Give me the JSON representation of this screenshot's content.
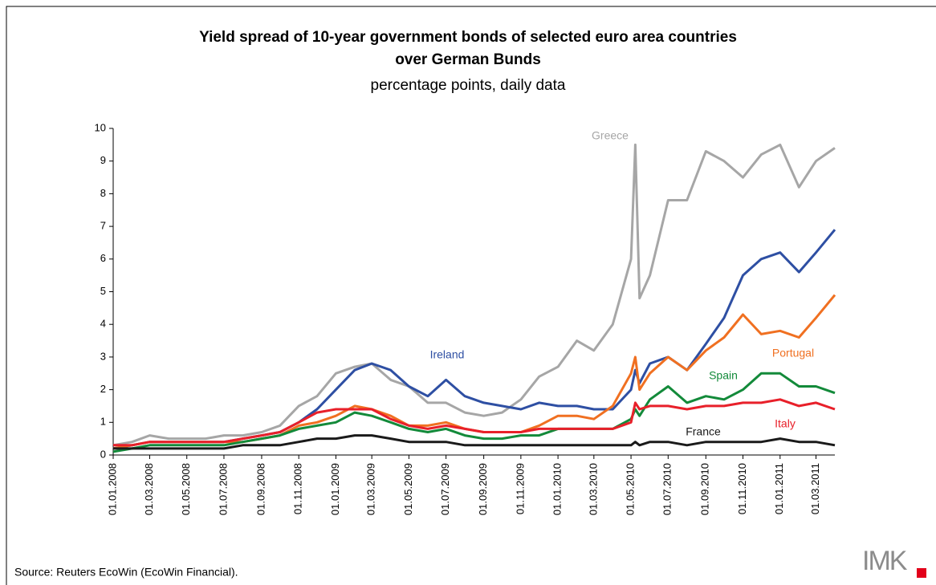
{
  "chart_data": {
    "type": "line",
    "title": "Yield spread of 10-year government bonds of selected euro area countries",
    "title_line2": "over German Bunds",
    "subtitle": "percentage points, daily data",
    "source": "Source: Reuters EcoWin (EcoWin Financial).",
    "logo": "IMK",
    "x": [
      "01.01.2008",
      "01.02.2008",
      "01.03.2008",
      "01.04.2008",
      "01.05.2008",
      "01.06.2008",
      "01.07.2008",
      "01.08.2008",
      "01.09.2008",
      "01.10.2008",
      "01.11.2008",
      "01.12.2008",
      "01.01.2009",
      "01.02.2009",
      "01.03.2009",
      "01.04.2009",
      "01.05.2009",
      "01.06.2009",
      "01.07.2009",
      "01.08.2009",
      "01.09.2009",
      "01.10.2009",
      "01.11.2009",
      "01.12.2009",
      "01.01.2010",
      "01.02.2010",
      "01.03.2010",
      "01.04.2010",
      "01.05.2010",
      "08.05.2010",
      "15.05.2010",
      "01.06.2010",
      "01.07.2010",
      "01.08.2010",
      "01.09.2010",
      "01.10.2010",
      "01.11.2010",
      "01.12.2010",
      "01.01.2011",
      "01.02.2011",
      "01.03.2011",
      "01.04.2011"
    ],
    "series": [
      {
        "name": "Greece",
        "color": "#a6a6a6",
        "values": [
          0.3,
          0.4,
          0.6,
          0.5,
          0.5,
          0.5,
          0.6,
          0.6,
          0.7,
          0.9,
          1.5,
          1.8,
          2.5,
          2.7,
          2.8,
          2.3,
          2.1,
          1.6,
          1.6,
          1.3,
          1.2,
          1.3,
          1.7,
          2.4,
          2.7,
          3.5,
          3.2,
          4.0,
          6.0,
          9.5,
          4.8,
          5.5,
          7.8,
          7.8,
          9.3,
          9.0,
          8.5,
          9.2,
          9.5,
          8.2,
          9.0,
          9.4
        ]
      },
      {
        "name": "Ireland",
        "color": "#2e4fa3",
        "values": [
          0.2,
          0.3,
          0.4,
          0.4,
          0.4,
          0.4,
          0.4,
          0.5,
          0.6,
          0.7,
          1.0,
          1.4,
          2.0,
          2.6,
          2.8,
          2.6,
          2.1,
          1.8,
          2.3,
          1.8,
          1.6,
          1.5,
          1.4,
          1.6,
          1.5,
          1.5,
          1.4,
          1.4,
          2.0,
          2.6,
          2.2,
          2.8,
          3.0,
          2.6,
          3.4,
          4.2,
          5.5,
          6.0,
          6.2,
          5.6,
          6.2,
          6.9
        ]
      },
      {
        "name": "Portugal",
        "color": "#f07021",
        "values": [
          0.2,
          0.3,
          0.4,
          0.4,
          0.4,
          0.4,
          0.4,
          0.4,
          0.5,
          0.6,
          0.9,
          1.0,
          1.2,
          1.5,
          1.4,
          1.2,
          0.9,
          0.9,
          1.0,
          0.8,
          0.7,
          0.7,
          0.7,
          0.9,
          1.2,
          1.2,
          1.1,
          1.5,
          2.5,
          3.0,
          2.0,
          2.5,
          3.0,
          2.6,
          3.2,
          3.6,
          4.3,
          3.7,
          3.8,
          3.6,
          4.2,
          4.9
        ]
      },
      {
        "name": "Spain",
        "color": "#138a3a",
        "values": [
          0.1,
          0.2,
          0.3,
          0.3,
          0.3,
          0.3,
          0.3,
          0.4,
          0.5,
          0.6,
          0.8,
          0.9,
          1.0,
          1.3,
          1.2,
          1.0,
          0.8,
          0.7,
          0.8,
          0.6,
          0.5,
          0.5,
          0.6,
          0.6,
          0.8,
          0.8,
          0.8,
          0.8,
          1.1,
          1.4,
          1.2,
          1.7,
          2.1,
          1.6,
          1.8,
          1.7,
          2.0,
          2.5,
          2.5,
          2.1,
          2.1,
          1.9
        ]
      },
      {
        "name": "Italy",
        "color": "#e8202a",
        "values": [
          0.3,
          0.3,
          0.4,
          0.4,
          0.4,
          0.4,
          0.4,
          0.5,
          0.6,
          0.7,
          1.0,
          1.3,
          1.4,
          1.4,
          1.4,
          1.1,
          0.9,
          0.8,
          0.9,
          0.8,
          0.7,
          0.7,
          0.7,
          0.8,
          0.8,
          0.8,
          0.8,
          0.8,
          1.0,
          1.6,
          1.4,
          1.5,
          1.5,
          1.4,
          1.5,
          1.5,
          1.6,
          1.6,
          1.7,
          1.5,
          1.6,
          1.4
        ]
      },
      {
        "name": "France",
        "color": "#1a1a1a",
        "values": [
          0.2,
          0.2,
          0.2,
          0.2,
          0.2,
          0.2,
          0.2,
          0.3,
          0.3,
          0.3,
          0.4,
          0.5,
          0.5,
          0.6,
          0.6,
          0.5,
          0.4,
          0.4,
          0.4,
          0.3,
          0.3,
          0.3,
          0.3,
          0.3,
          0.3,
          0.3,
          0.3,
          0.3,
          0.3,
          0.4,
          0.3,
          0.4,
          0.4,
          0.3,
          0.4,
          0.4,
          0.4,
          0.4,
          0.5,
          0.4,
          0.4,
          0.3
        ]
      }
    ],
    "xlim": [
      "01.01.2008",
      "01.04.2011"
    ],
    "xticks": [
      "01.01.2008",
      "01.03.2008",
      "01.05.2008",
      "01.07.2008",
      "01.09.2008",
      "01.11.2008",
      "01.01.2009",
      "01.03.2009",
      "01.05.2009",
      "01.07.2009",
      "01.09.2009",
      "01.11.2009",
      "01.01.2010",
      "01.03.2010",
      "01.05.2010",
      "01.07.2010",
      "01.09.2010",
      "01.11.2010",
      "01.01.2011",
      "01.03.2011"
    ],
    "ylim": [
      0,
      10
    ],
    "yticks": [
      0,
      1,
      2,
      3,
      4,
      5,
      6,
      7,
      8,
      9,
      10
    ]
  }
}
